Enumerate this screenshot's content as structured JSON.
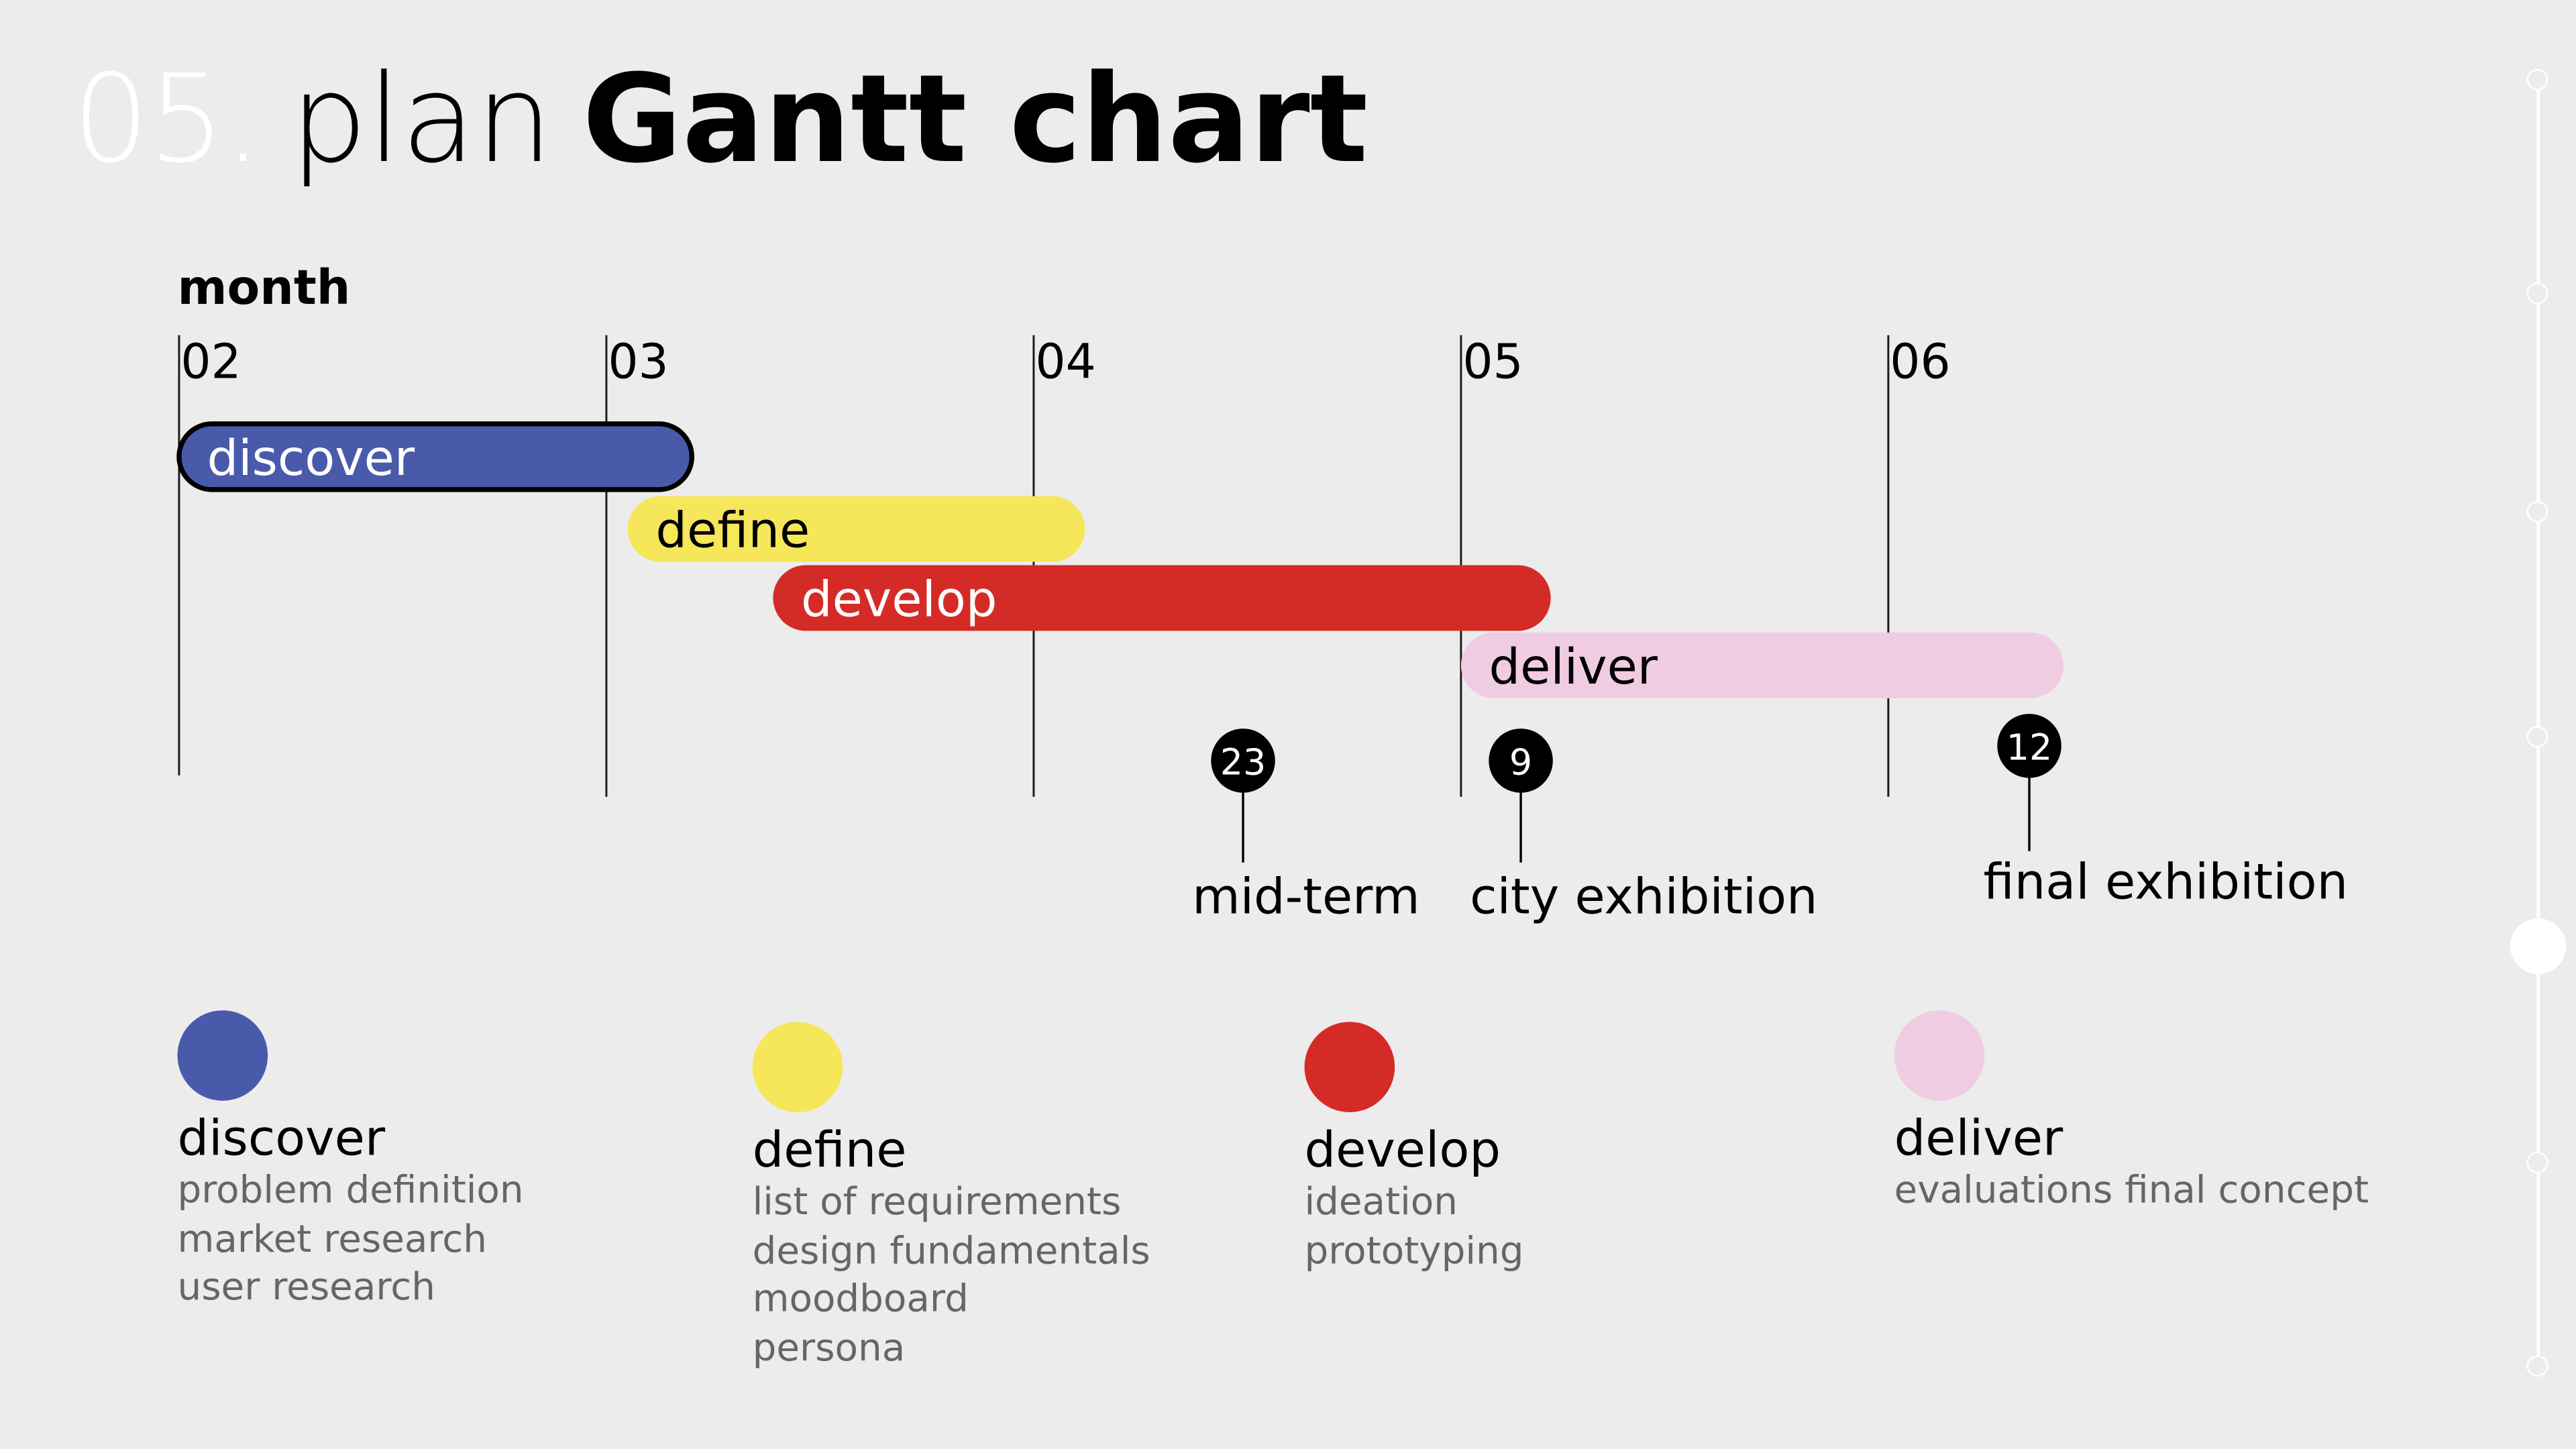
{
  "title": {
    "number": "05.",
    "prefix": "plan",
    "main": "Gantt chart"
  },
  "chart_data": {
    "type": "gantt",
    "axis_title": "month",
    "months": [
      "02",
      "03",
      "04",
      "05",
      "06"
    ],
    "tasks": [
      {
        "name": "discover",
        "start": 2.0,
        "end": 3.2,
        "color": "#4a5aab",
        "outlined": true,
        "text_color": "#ffffff"
      },
      {
        "name": "define",
        "start": 3.05,
        "end": 4.12,
        "color": "#f5e65a",
        "outlined": false,
        "text_color": "#000000"
      },
      {
        "name": "develop",
        "start": 3.39,
        "end": 5.21,
        "color": "#d52b26",
        "outlined": false,
        "text_color": "#ffffff"
      },
      {
        "name": "deliver",
        "start": 5.0,
        "end": 6.41,
        "color": "#f0cce2",
        "outlined": false,
        "text_color": "#000000"
      }
    ],
    "milestones": [
      {
        "day": "23",
        "label": "mid-term",
        "x": 4.49
      },
      {
        "day": "9",
        "label": "city exhibition",
        "x": 5.14
      },
      {
        "day": "12",
        "label": "final exhibition",
        "x": 6.33
      }
    ]
  },
  "legend": [
    {
      "name": "discover",
      "color": "#4a5aab",
      "items": [
        "problem definition",
        "market research",
        "user research"
      ]
    },
    {
      "name": "define",
      "color": "#f5e65a",
      "items": [
        "list of requirements",
        "design fundamentals",
        "moodboard",
        "persona"
      ]
    },
    {
      "name": "develop",
      "color": "#d52b26",
      "items": [
        "ideation",
        "prototyping"
      ]
    },
    {
      "name": "deliver",
      "color": "#f0cce2",
      "items": [
        "evaluations final concept"
      ]
    }
  ],
  "progress": {
    "steps": 7,
    "active_step": 5
  }
}
